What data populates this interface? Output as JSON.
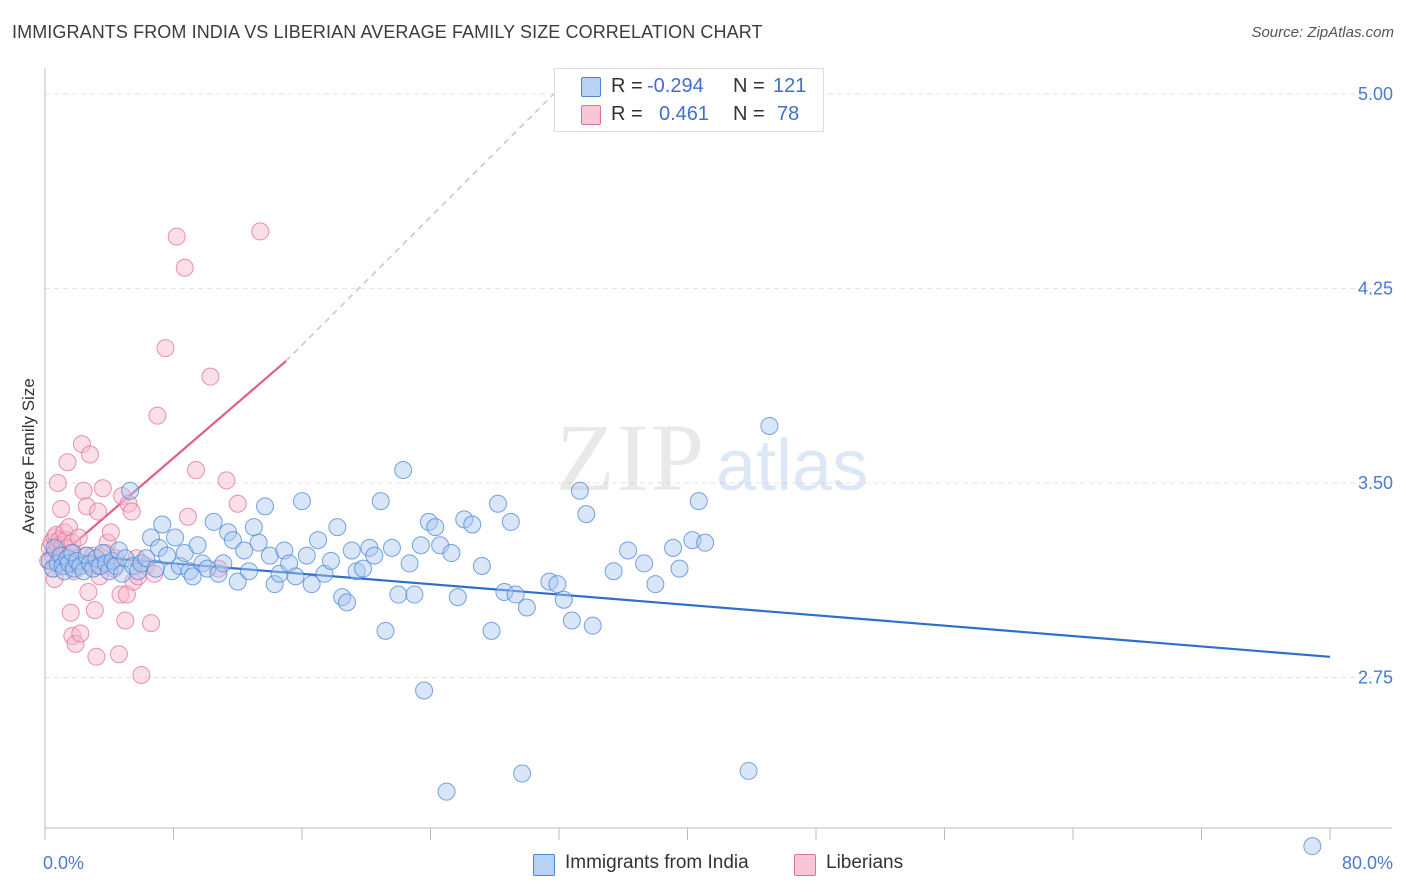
{
  "header": {
    "title": "IMMIGRANTS FROM INDIA VS LIBERIAN AVERAGE FAMILY SIZE CORRELATION CHART",
    "source": "Source: ZipAtlas.com"
  },
  "legend": {
    "rows": [
      {
        "r_label": "R =",
        "r_value": "-0.294",
        "n_label": "N =",
        "n_value": "121"
      },
      {
        "r_label": "R =",
        "r_value": "0.461",
        "n_label": "N =",
        "n_value": "78"
      }
    ]
  },
  "bottom_legend": {
    "india": "Immigrants from India",
    "liberian": "Liberians"
  },
  "colors": {
    "india_fill": "#a9c8f0",
    "india_stroke": "#4a86d8",
    "india_line": "#2d6fcb",
    "liberian_fill": "#f6b9cc",
    "liberian_stroke": "#e07096",
    "liberian_line": "#e0608a",
    "tick_text": "#4a7bd0",
    "grid": "#e3e3e3"
  },
  "chart_data": {
    "type": "scatter",
    "title": "IMMIGRANTS FROM INDIA VS LIBERIAN AVERAGE FAMILY SIZE CORRELATION CHART",
    "xlabel": "",
    "ylabel": "Average Family Size",
    "xlim": [
      0,
      80
    ],
    "ylim": [
      2.17,
      5.1
    ],
    "x_tick_labels": [
      "0.0%",
      "80.0%"
    ],
    "y_ticks": [
      2.75,
      3.5,
      4.25,
      5.0
    ],
    "y_tick_labels": [
      "2.75",
      "3.50",
      "4.25",
      "5.00"
    ],
    "grid": true,
    "legend_position": "top-center",
    "series": [
      {
        "name": "Immigrants from India",
        "r": -0.294,
        "n": 121,
        "trend": {
          "x0": 0,
          "y0": 3.23,
          "x1": 80,
          "y1": 2.83
        },
        "points": [
          [
            0.3,
            3.2
          ],
          [
            0.5,
            3.17
          ],
          [
            0.6,
            3.25
          ],
          [
            0.8,
            3.19
          ],
          [
            1.0,
            3.22
          ],
          [
            1.1,
            3.18
          ],
          [
            1.2,
            3.16
          ],
          [
            1.4,
            3.21
          ],
          [
            1.5,
            3.19
          ],
          [
            1.7,
            3.23
          ],
          [
            1.8,
            3.17
          ],
          [
            2.0,
            3.2
          ],
          [
            2.2,
            3.18
          ],
          [
            2.4,
            3.16
          ],
          [
            2.6,
            3.22
          ],
          [
            2.8,
            3.19
          ],
          [
            3.0,
            3.17
          ],
          [
            3.2,
            3.21
          ],
          [
            3.4,
            3.18
          ],
          [
            3.6,
            3.23
          ],
          [
            3.8,
            3.19
          ],
          [
            4.0,
            3.16
          ],
          [
            4.2,
            3.2
          ],
          [
            4.4,
            3.18
          ],
          [
            4.6,
            3.24
          ],
          [
            4.8,
            3.15
          ],
          [
            5.0,
            3.21
          ],
          [
            5.3,
            3.47
          ],
          [
            5.5,
            3.18
          ],
          [
            5.8,
            3.16
          ],
          [
            6.0,
            3.19
          ],
          [
            6.3,
            3.21
          ],
          [
            6.6,
            3.29
          ],
          [
            6.9,
            3.17
          ],
          [
            7.1,
            3.25
          ],
          [
            7.3,
            3.34
          ],
          [
            7.6,
            3.22
          ],
          [
            7.9,
            3.16
          ],
          [
            8.1,
            3.29
          ],
          [
            8.4,
            3.18
          ],
          [
            8.7,
            3.23
          ],
          [
            9.0,
            3.16
          ],
          [
            9.2,
            3.14
          ],
          [
            9.5,
            3.26
          ],
          [
            9.8,
            3.19
          ],
          [
            10.1,
            3.17
          ],
          [
            10.5,
            3.35
          ],
          [
            10.8,
            3.15
          ],
          [
            11.1,
            3.19
          ],
          [
            11.4,
            3.31
          ],
          [
            11.7,
            3.28
          ],
          [
            12.0,
            3.12
          ],
          [
            12.4,
            3.24
          ],
          [
            12.7,
            3.16
          ],
          [
            13.0,
            3.33
          ],
          [
            13.3,
            3.27
          ],
          [
            13.7,
            3.41
          ],
          [
            14.0,
            3.22
          ],
          [
            14.3,
            3.11
          ],
          [
            14.6,
            3.15
          ],
          [
            14.9,
            3.24
          ],
          [
            15.2,
            3.19
          ],
          [
            15.6,
            3.14
          ],
          [
            16.0,
            3.43
          ],
          [
            16.3,
            3.22
          ],
          [
            16.6,
            3.11
          ],
          [
            17.0,
            3.28
          ],
          [
            17.4,
            3.15
          ],
          [
            17.8,
            3.2
          ],
          [
            18.2,
            3.33
          ],
          [
            18.5,
            3.06
          ],
          [
            18.8,
            3.04
          ],
          [
            19.1,
            3.24
          ],
          [
            19.4,
            3.16
          ],
          [
            19.8,
            3.17
          ],
          [
            20.2,
            3.25
          ],
          [
            20.5,
            3.22
          ],
          [
            20.9,
            3.43
          ],
          [
            21.2,
            2.93
          ],
          [
            21.6,
            3.25
          ],
          [
            22.0,
            3.07
          ],
          [
            22.3,
            3.55
          ],
          [
            22.7,
            3.19
          ],
          [
            23.0,
            3.07
          ],
          [
            23.4,
            3.26
          ],
          [
            23.6,
            2.7
          ],
          [
            23.9,
            3.35
          ],
          [
            24.3,
            3.33
          ],
          [
            24.6,
            3.26
          ],
          [
            25.0,
            2.31
          ],
          [
            25.3,
            3.23
          ],
          [
            25.7,
            3.06
          ],
          [
            26.1,
            3.36
          ],
          [
            26.6,
            3.34
          ],
          [
            27.2,
            3.18
          ],
          [
            27.8,
            2.93
          ],
          [
            28.2,
            3.42
          ],
          [
            28.6,
            3.08
          ],
          [
            29.0,
            3.35
          ],
          [
            29.3,
            3.07
          ],
          [
            29.7,
            2.38
          ],
          [
            30.0,
            3.02
          ],
          [
            31.4,
            3.12
          ],
          [
            31.9,
            3.11
          ],
          [
            32.3,
            3.05
          ],
          [
            32.8,
            2.97
          ],
          [
            33.3,
            3.47
          ],
          [
            33.7,
            3.38
          ],
          [
            34.1,
            2.95
          ],
          [
            35.4,
            3.16
          ],
          [
            36.3,
            3.24
          ],
          [
            37.3,
            3.19
          ],
          [
            38.0,
            3.11
          ],
          [
            39.1,
            3.25
          ],
          [
            39.5,
            3.17
          ],
          [
            40.3,
            3.28
          ],
          [
            40.7,
            3.43
          ],
          [
            41.1,
            3.27
          ],
          [
            43.8,
            2.39
          ],
          [
            45.1,
            3.72
          ],
          [
            78.9,
            2.1
          ]
        ]
      },
      {
        "name": "Liberians",
        "r": 0.461,
        "n": 78,
        "trend": {
          "x0": 0,
          "y0": 3.17,
          "x1": 15,
          "y1": 3.97
        },
        "trend_dashed_to": {
          "x": 32,
          "y": 5.02
        },
        "points": [
          [
            0.2,
            3.2
          ],
          [
            0.3,
            3.25
          ],
          [
            0.4,
            3.27
          ],
          [
            0.5,
            3.22
          ],
          [
            0.5,
            3.17
          ],
          [
            0.6,
            3.29
          ],
          [
            0.7,
            3.24
          ],
          [
            0.7,
            3.3
          ],
          [
            0.8,
            3.26
          ],
          [
            0.9,
            3.21
          ],
          [
            0.9,
            3.28
          ],
          [
            1.0,
            3.23
          ],
          [
            1.1,
            3.19
          ],
          [
            1.1,
            3.26
          ],
          [
            1.2,
            3.22
          ],
          [
            1.2,
            3.31
          ],
          [
            1.3,
            3.18
          ],
          [
            1.3,
            3.28
          ],
          [
            1.4,
            3.25
          ],
          [
            1.5,
            3.2
          ],
          [
            1.5,
            3.33
          ],
          [
            1.6,
            3.23
          ],
          [
            1.7,
            3.27
          ],
          [
            1.8,
            3.16
          ],
          [
            0.6,
            3.13
          ],
          [
            0.8,
            3.5
          ],
          [
            1.0,
            3.4
          ],
          [
            1.4,
            3.58
          ],
          [
            1.6,
            3.0
          ],
          [
            1.7,
            2.91
          ],
          [
            1.9,
            2.88
          ],
          [
            2.0,
            3.19
          ],
          [
            2.1,
            3.29
          ],
          [
            2.2,
            2.92
          ],
          [
            2.3,
            3.65
          ],
          [
            2.4,
            3.47
          ],
          [
            2.5,
            3.22
          ],
          [
            2.6,
            3.41
          ],
          [
            2.7,
            3.08
          ],
          [
            2.8,
            3.61
          ],
          [
            2.9,
            3.18
          ],
          [
            3.0,
            3.22
          ],
          [
            3.1,
            3.01
          ],
          [
            3.2,
            2.83
          ],
          [
            3.3,
            3.39
          ],
          [
            3.4,
            3.14
          ],
          [
            3.5,
            3.18
          ],
          [
            3.6,
            3.48
          ],
          [
            3.8,
            3.23
          ],
          [
            3.9,
            3.27
          ],
          [
            4.1,
            3.31
          ],
          [
            4.3,
            3.17
          ],
          [
            4.4,
            3.21
          ],
          [
            4.6,
            2.84
          ],
          [
            4.7,
            3.07
          ],
          [
            4.8,
            3.45
          ],
          [
            5.0,
            2.97
          ],
          [
            5.1,
            3.07
          ],
          [
            5.2,
            3.42
          ],
          [
            5.4,
            3.39
          ],
          [
            5.5,
            3.12
          ],
          [
            5.7,
            3.21
          ],
          [
            5.8,
            3.14
          ],
          [
            6.0,
            2.76
          ],
          [
            6.3,
            3.18
          ],
          [
            6.6,
            2.96
          ],
          [
            6.8,
            3.15
          ],
          [
            7.0,
            3.76
          ],
          [
            7.5,
            4.02
          ],
          [
            8.2,
            4.45
          ],
          [
            8.7,
            4.33
          ],
          [
            8.9,
            3.37
          ],
          [
            9.4,
            3.55
          ],
          [
            10.3,
            3.91
          ],
          [
            10.8,
            3.17
          ],
          [
            11.3,
            3.51
          ],
          [
            12.0,
            3.42
          ],
          [
            13.4,
            4.47
          ]
        ]
      }
    ]
  }
}
